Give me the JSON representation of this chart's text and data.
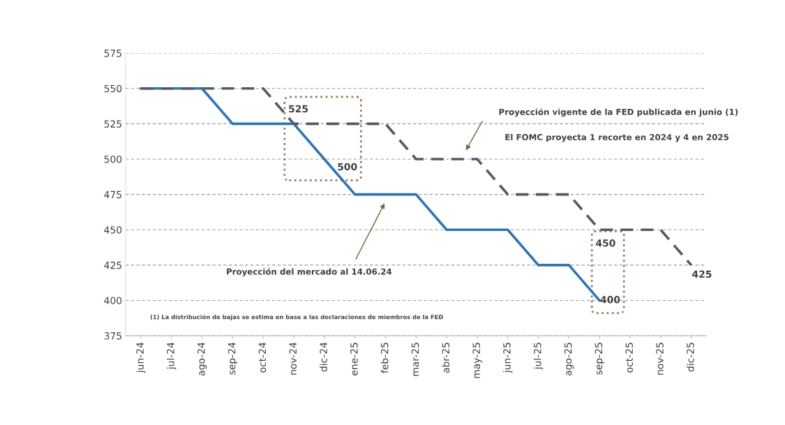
{
  "chart_data": {
    "type": "line",
    "categories": [
      "jun-24",
      "jul-24",
      "ago-24",
      "sep-24",
      "oct-24",
      "nov-24",
      "dic-24",
      "ene-25",
      "feb-25",
      "mar-25",
      "abr-25",
      "may-25",
      "jun-25",
      "jul-25",
      "ago-25",
      "sep-25",
      "oct-25",
      "nov-25",
      "dic-25"
    ],
    "series": [
      {
        "color": "#2e75b6",
        "line_style": "solid",
        "values": [
          550,
          550,
          550,
          525,
          525,
          525,
          500,
          475,
          475,
          475,
          450,
          450,
          450,
          425,
          425,
          400,
          null,
          null,
          null
        ]
      },
      {
        "color": "#595959",
        "line_style": "dashed",
        "values": [
          550,
          550,
          550,
          550,
          550,
          525,
          525,
          525,
          525,
          500,
          500,
          500,
          475,
          475,
          475,
          450,
          450,
          450,
          425
        ]
      }
    ],
    "ylim": [
      375,
      575
    ],
    "yticks": [
      375,
      400,
      425,
      450,
      475,
      500,
      525,
      550,
      575
    ],
    "grid": "y",
    "legend": false,
    "marker": "none",
    "annotations": [
      {
        "text": "525",
        "x": "nov-24",
        "y": 525
      },
      {
        "text": "500",
        "x": "dic-24",
        "y": 500
      },
      {
        "text": "450",
        "x": "sep-25",
        "y": 450
      },
      {
        "text": "400",
        "x": "sep-25",
        "y": 400
      },
      {
        "text": "425",
        "x": "dic-25",
        "y": 425
      },
      "Proyección vigente de la FED publicada en junio (1)",
      "El FOMC proyecta 1 recorte en 2024 y 4 en 2025",
      "Proyección del mercado al 14.06.24",
      "(1) La distribución de bajas se estima en base a las declaraciones de miembros de la FED"
    ]
  }
}
